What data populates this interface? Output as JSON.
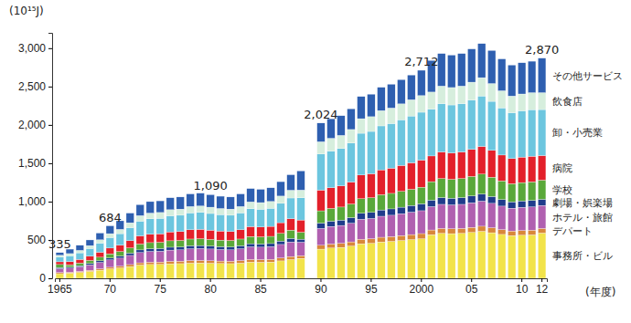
{
  "chart_data": {
    "type": "bar",
    "stacked": true,
    "grid": false,
    "legend": "right",
    "y_label": "(10¹⁵J)",
    "x_label": "(年度)",
    "categories": [
      "1965",
      null,
      null,
      null,
      null,
      "70",
      null,
      null,
      null,
      null,
      "75",
      null,
      null,
      null,
      null,
      "80",
      null,
      null,
      null,
      null,
      "85",
      null,
      null,
      null,
      null,
      null,
      "90",
      null,
      null,
      null,
      null,
      "95",
      null,
      null,
      null,
      null,
      "2000",
      null,
      null,
      null,
      null,
      "05",
      null,
      null,
      null,
      null,
      "10",
      null,
      "12"
    ],
    "ylim": [
      0,
      3200
    ],
    "yticks": [
      0,
      500,
      {
        "value": 1000,
        "label": "1,000"
      },
      {
        "value": 1500,
        "label": "1,500"
      },
      {
        "value": 2000,
        "label": "2,000"
      },
      {
        "value": 2500,
        "label": "2,500"
      },
      {
        "value": 3000,
        "label": "3,000"
      }
    ],
    "series": [
      {
        "name": "事務所・ビル",
        "color": "#f2e34a",
        "values": [
          60,
          68,
          77,
          90,
          106,
          123,
          135,
          153,
          173,
          180,
          182,
          189,
          191,
          198,
          200,
          196,
          193,
          191,
          198,
          211,
          209,
          212,
          227,
          243,
          260,
          null,
          380,
          395,
          403,
          420,
          450,
          456,
          473,
          481,
          492,
          504,
          515,
          568,
          586,
          582,
          586,
          598,
          612,
          594,
          572,
          556,
          562,
          566,
          590
        ]
      },
      {
        "name": "デパート",
        "color": "#d9873a",
        "values": [
          15,
          11,
          13,
          15,
          18,
          21,
          23,
          26,
          29,
          30,
          30,
          32,
          32,
          33,
          33,
          33,
          32,
          32,
          33,
          35,
          35,
          35,
          38,
          41,
          35,
          null,
          50,
          52,
          53,
          55,
          59,
          60,
          62,
          63,
          65,
          66,
          68,
          62,
          64,
          64,
          64,
          66,
          67,
          65,
          63,
          61,
          62,
          62,
          60
        ]
      },
      {
        "name": "ホテル・旅館",
        "color": "#b060b0",
        "values": [
          50,
          53,
          60,
          70,
          83,
          96,
          105,
          119,
          134,
          140,
          141,
          147,
          148,
          154,
          155,
          153,
          150,
          148,
          154,
          164,
          162,
          165,
          176,
          189,
          175,
          null,
          220,
          229,
          233,
          243,
          261,
          264,
          274,
          278,
          285,
          292,
          298,
          304,
          314,
          311,
          314,
          320,
          327,
          318,
          306,
          297,
          301,
          303,
          300
        ]
      },
      {
        "name": "劇場・娯楽場",
        "color": "#1f3c8c",
        "values": [
          15,
          13,
          15,
          18,
          21,
          24,
          26,
          30,
          34,
          35,
          35,
          37,
          37,
          39,
          39,
          38,
          37,
          37,
          39,
          41,
          41,
          41,
          44,
          47,
          40,
          null,
          70,
          69,
          70,
          73,
          78,
          79,
          82,
          83,
          85,
          87,
          90,
          85,
          88,
          87,
          88,
          90,
          92,
          89,
          86,
          83,
          84,
          85,
          80
        ]
      },
      {
        "name": "学校",
        "color": "#5aa83a",
        "values": [
          40,
          30,
          34,
          40,
          47,
          55,
          60,
          68,
          77,
          80,
          81,
          84,
          85,
          88,
          89,
          87,
          86,
          85,
          88,
          94,
          93,
          94,
          101,
          108,
          90,
          null,
          160,
          166,
          170,
          177,
          190,
          192,
          199,
          202,
          207,
          212,
          217,
          241,
          249,
          247,
          249,
          254,
          260,
          252,
          243,
          236,
          239,
          241,
          250
        ]
      },
      {
        "name": "病院",
        "color": "#e3202a",
        "values": [
          35,
          42,
          47,
          55,
          65,
          75,
          83,
          94,
          106,
          110,
          111,
          116,
          117,
          121,
          122,
          120,
          118,
          117,
          121,
          129,
          128,
          130,
          139,
          149,
          160,
          null,
          270,
          270,
          276,
          287,
          308,
          312,
          324,
          329,
          337,
          345,
          353,
          335,
          346,
          343,
          346,
          353,
          361,
          350,
          337,
          328,
          332,
          334,
          320
        ]
      },
      {
        "name": "卸・小売業",
        "color": "#6cc6df",
        "values": [
          60,
          76,
          86,
          100,
          118,
          137,
          150,
          170,
          192,
          200,
          202,
          210,
          212,
          220,
          222,
          218,
          214,
          212,
          220,
          234,
          232,
          236,
          252,
          270,
          290,
          null,
          470,
          478,
          488,
          508,
          545,
          552,
          573,
          582,
          596,
          610,
          624,
          611,
          630,
          626,
          630,
          643,
          658,
          639,
          615,
          598,
          604,
          608,
          600
        ]
      },
      {
        "name": "飲食店",
        "color": "#d6eedd",
        "values": [
          25,
          29,
          32,
          38,
          44,
          51,
          56,
          64,
          72,
          75,
          76,
          79,
          80,
          83,
          83,
          82,
          80,
          80,
          83,
          88,
          87,
          89,
          95,
          101,
          100,
          null,
          160,
          166,
          170,
          177,
          190,
          192,
          199,
          202,
          207,
          212,
          217,
          222,
          229,
          227,
          229,
          233,
          239,
          232,
          223,
          217,
          219,
          221,
          220
        ]
      },
      {
        "name": "その他サービス",
        "color": "#2e5fb0",
        "values": [
          35,
          58,
          66,
          74,
          88,
          102,
          112,
          126,
          143,
          150,
          152,
          156,
          158,
          164,
          167,
          163,
          160,
          158,
          164,
          174,
          173,
          178,
          188,
          202,
          250,
          null,
          244,
          255,
          257,
          270,
          289,
          293,
          304,
          310,
          316,
          322,
          330,
          412,
          424,
          423,
          424,
          433,
          444,
          431,
          415,
          404,
          407,
          410,
          450
        ]
      }
    ],
    "annotations": [
      {
        "text": "335",
        "value": 335,
        "index": 0
      },
      {
        "text": "684",
        "value": 684,
        "index": 5
      },
      {
        "text": "1,090",
        "value": 1090,
        "index": 15
      },
      {
        "text": "2,024",
        "value": 2024,
        "index": 26
      },
      {
        "text": "2,712",
        "value": 2712,
        "index": 36
      },
      {
        "text": "2,870",
        "value": 2870,
        "index": 48
      }
    ]
  }
}
